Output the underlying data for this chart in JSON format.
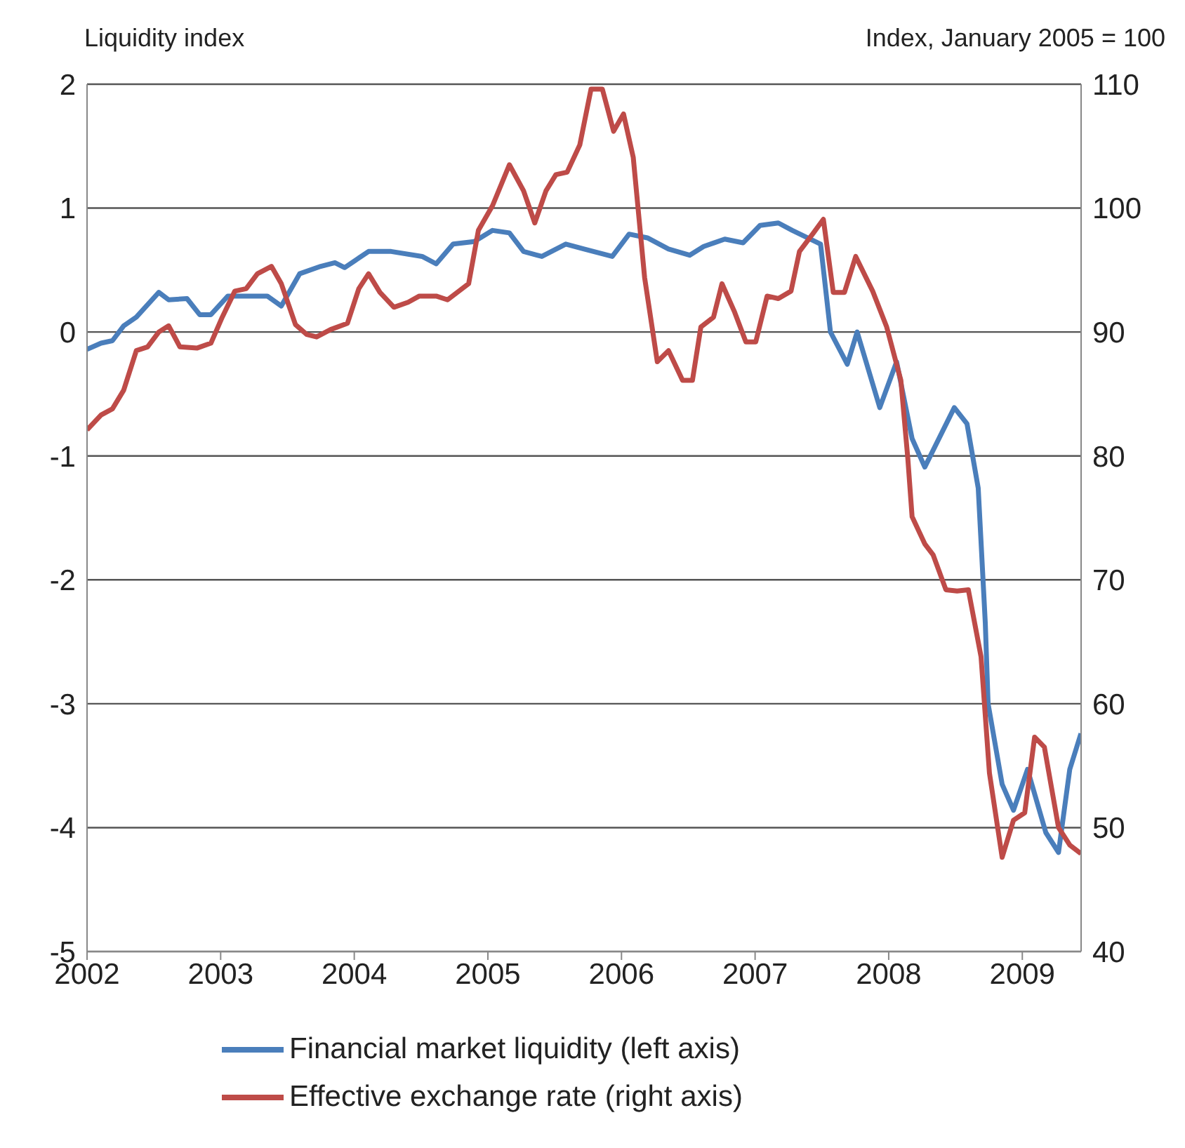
{
  "chart_data": {
    "type": "line",
    "ylabel": "Liquidity index",
    "y2label": "Index, January 2005 = 100",
    "xlim": [
      2002,
      2009.44
    ],
    "xticks": [
      2002,
      2003,
      2004,
      2005,
      2006,
      2007,
      2008,
      2009
    ],
    "ylim": [
      -5,
      2
    ],
    "yticks": [
      -5,
      -4,
      -3,
      -2,
      -1,
      0,
      1,
      2
    ],
    "y2lim": [
      40,
      110
    ],
    "y2ticks": [
      40,
      50,
      60,
      70,
      80,
      90,
      100,
      110
    ],
    "grid": "y",
    "legend": "bottom",
    "marker": "none",
    "line_style": "solid",
    "series": [
      {
        "name": "Financial market liquidity (left axis)",
        "color": "#4a7ebb",
        "x": [
          2002,
          2002.105,
          2002.19,
          2002.274,
          2002.369,
          2002.537,
          2002.611,
          2002.748,
          2002.843,
          2002.927,
          2003.054,
          2003.243,
          2003.349,
          2003.454,
          2003.591,
          2003.749,
          2003.855,
          2003.928,
          2004.107,
          2004.276,
          2004.508,
          2004.613,
          2004.74,
          2004.898,
          2005.035,
          2005.161,
          2005.267,
          2005.404,
          2005.583,
          2005.72,
          2005.931,
          2006.057,
          2006.194,
          2006.352,
          2006.51,
          2006.615,
          2006.773,
          2006.91,
          2007.037,
          2007.174,
          2007.279,
          2007.49,
          2007.564,
          2007.69,
          2007.764,
          2007.933,
          2008.059,
          2008.175,
          2008.27,
          2008.491,
          2008.586,
          2008.67,
          2008.723,
          2008.744,
          2008.849,
          2008.934,
          2009.039,
          2009.176,
          2009.271,
          2009.355,
          2009.439
        ],
        "values": [
          -0.14,
          -0.09,
          -0.07,
          0.05,
          0.12,
          0.32,
          0.26,
          0.27,
          0.14,
          0.14,
          0.29,
          0.29,
          0.29,
          0.21,
          0.47,
          0.53,
          0.56,
          0.52,
          0.65,
          0.65,
          0.61,
          0.55,
          0.71,
          0.73,
          0.82,
          0.8,
          0.65,
          0.61,
          0.71,
          0.67,
          0.61,
          0.79,
          0.76,
          0.67,
          0.62,
          0.69,
          0.75,
          0.72,
          0.86,
          0.88,
          0.82,
          0.71,
          0,
          -0.26,
          0,
          -0.61,
          -0.24,
          -0.86,
          -1.09,
          -0.61,
          -0.74,
          -1.26,
          -2.35,
          -3,
          -3.65,
          -3.86,
          -3.53,
          -4.04,
          -4.2,
          -3.53,
          -3.24
        ]
      },
      {
        "name": "Effective exchange rate (right axis)",
        "color": "#be4b48",
        "axis": "y2",
        "x": [
          2002,
          2002.105,
          2002.19,
          2002.274,
          2002.369,
          2002.453,
          2002.537,
          2002.611,
          2002.695,
          2002.822,
          2002.927,
          2003.012,
          2003.106,
          2003.191,
          2003.275,
          2003.38,
          2003.454,
          2003.56,
          2003.644,
          2003.718,
          2003.823,
          2003.949,
          2004.034,
          2004.107,
          2004.192,
          2004.297,
          2004.403,
          2004.487,
          2004.613,
          2004.698,
          2004.856,
          2004.929,
          2005.035,
          2005.161,
          2005.267,
          2005.351,
          2005.435,
          2005.509,
          2005.593,
          2005.688,
          2005.772,
          2005.857,
          2005.941,
          2006.015,
          2006.088,
          2006.173,
          2006.268,
          2006.352,
          2006.457,
          2006.531,
          2006.594,
          2006.689,
          2006.752,
          2006.847,
          2006.931,
          2007.005,
          2007.09,
          2007.174,
          2007.269,
          2007.332,
          2007.437,
          2007.511,
          2007.585,
          2007.669,
          2007.753,
          2007.88,
          2007.985,
          2008.091,
          2008.143,
          2008.175,
          2008.27,
          2008.333,
          2008.428,
          2008.512,
          2008.596,
          2008.691,
          2008.754,
          2008.849,
          2008.934,
          2009.018,
          2009.092,
          2009.165,
          2009.271,
          2009.355,
          2009.439
        ],
        "values": [
          82.1,
          83.3,
          83.8,
          85.3,
          88.5,
          88.8,
          90,
          90.5,
          88.8,
          88.7,
          89.1,
          91.2,
          93.3,
          93.5,
          94.7,
          95.3,
          93.9,
          90.6,
          89.8,
          89.6,
          90.2,
          90.7,
          93.5,
          94.7,
          93.2,
          92,
          92.4,
          92.9,
          92.9,
          92.6,
          93.9,
          98.2,
          100.2,
          103.5,
          101.4,
          98.8,
          101.4,
          102.7,
          102.9,
          105.1,
          109.6,
          109.6,
          106.2,
          107.6,
          104.1,
          94.4,
          87.6,
          88.5,
          86.1,
          86.1,
          90.4,
          91.2,
          93.9,
          91.6,
          89.2,
          89.2,
          92.9,
          92.7,
          93.3,
          96.5,
          98,
          99.1,
          93.2,
          93.2,
          96.1,
          93.3,
          90.4,
          86.1,
          79.8,
          75.1,
          72.9,
          72,
          69.2,
          69.1,
          69.2,
          63.8,
          54.4,
          47.6,
          50.6,
          51.2,
          57.3,
          56.5,
          50,
          48.6,
          47.9
        ]
      }
    ]
  }
}
